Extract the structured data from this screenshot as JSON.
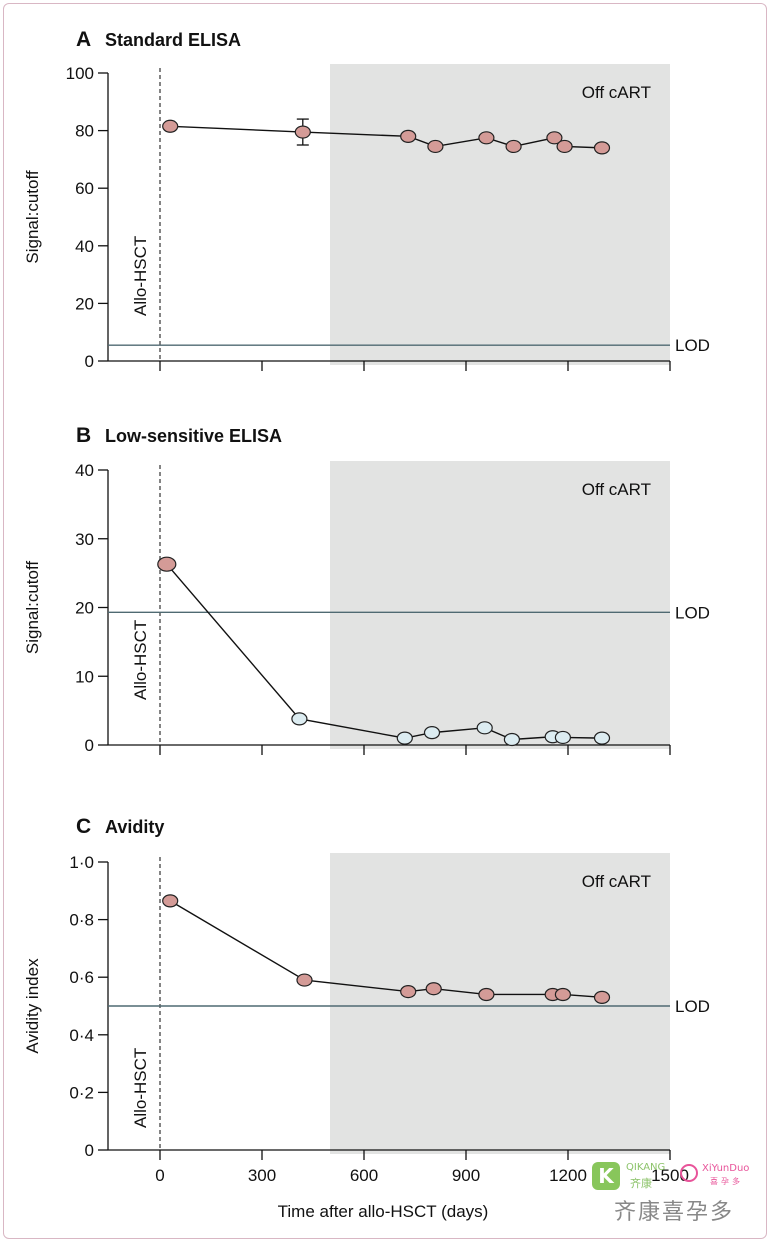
{
  "chart_data": [
    {
      "type": "scatter",
      "panel": "A",
      "title": "Standard ELISA",
      "ylabel": "Signal:cutoff",
      "ylim": [
        0,
        100
      ],
      "yticks": [
        "0",
        "20",
        "40",
        "60",
        "80",
        "100"
      ],
      "xlim": [
        -100,
        1500
      ],
      "shaded_region": {
        "from": 500,
        "to": 1500,
        "label": "Off cART"
      },
      "event_marker": {
        "x": 0,
        "label": "Allo-HSCT"
      },
      "lod": {
        "value": 5.5,
        "label": "LOD"
      },
      "series": [
        {
          "marker_color": "#d49b97",
          "x": [
            30,
            420,
            730,
            810,
            960,
            1040,
            1160,
            1190,
            1300
          ],
          "y": [
            81.5,
            79.5,
            78,
            74.5,
            77.5,
            74.5,
            77.5,
            74.5,
            74
          ],
          "error": [
            null,
            4.5,
            null,
            null,
            null,
            null,
            null,
            null,
            null
          ]
        }
      ]
    },
    {
      "type": "scatter",
      "panel": "B",
      "title": "Low-sensitive ELISA",
      "ylabel": "Signal:cutoff",
      "ylim": [
        0,
        40
      ],
      "yticks": [
        "0",
        "10",
        "20",
        "30",
        "40"
      ],
      "xlim": [
        -100,
        1500
      ],
      "shaded_region": {
        "from": 500,
        "to": 1500,
        "label": "Off cART"
      },
      "event_marker": {
        "x": 0,
        "label": "Allo-HSCT"
      },
      "lod": {
        "value": 19.3,
        "label": "LOD"
      },
      "series": [
        {
          "x": [
            20,
            410,
            720,
            800,
            955,
            1035,
            1155,
            1185,
            1300
          ],
          "y": [
            26.3,
            3.8,
            1.0,
            1.8,
            2.5,
            0.8,
            1.2,
            1.1,
            1.0
          ],
          "marker_colors": [
            "#d49b97",
            "#dcecf1",
            "#dcecf1",
            "#dcecf1",
            "#dcecf1",
            "#dcecf1",
            "#dcecf1",
            "#dcecf1",
            "#dcecf1"
          ]
        }
      ]
    },
    {
      "type": "scatter",
      "panel": "C",
      "title": "Avidity",
      "ylabel": "Avidity index",
      "xlabel": "Time after allo-HSCT (days)",
      "ylim": [
        0,
        1.0
      ],
      "yticks": [
        "0",
        "0·2",
        "0·4",
        "0·6",
        "0·8",
        "1·0"
      ],
      "xlim": [
        -100,
        1500
      ],
      "xticks": [
        "0",
        "300",
        "600",
        "900",
        "1200",
        "1500"
      ],
      "shaded_region": {
        "from": 500,
        "to": 1500,
        "label": "Off cART"
      },
      "event_marker": {
        "x": 0,
        "label": "Allo-HSCT"
      },
      "lod": {
        "value": 0.5,
        "label": "LOD"
      },
      "series": [
        {
          "marker_color": "#d49b97",
          "x": [
            30,
            425,
            730,
            805,
            960,
            1155,
            1185,
            1300
          ],
          "y": [
            0.865,
            0.59,
            0.55,
            0.56,
            0.54,
            0.54,
            0.54,
            0.53
          ]
        }
      ]
    }
  ],
  "watermark": {
    "brand_en": "QIKANG",
    "brand_cn": "齐康",
    "brand2_en": "XiYunDuo",
    "brand2_cn": "喜孕多",
    "footer_cn": "齐康喜孕多"
  }
}
